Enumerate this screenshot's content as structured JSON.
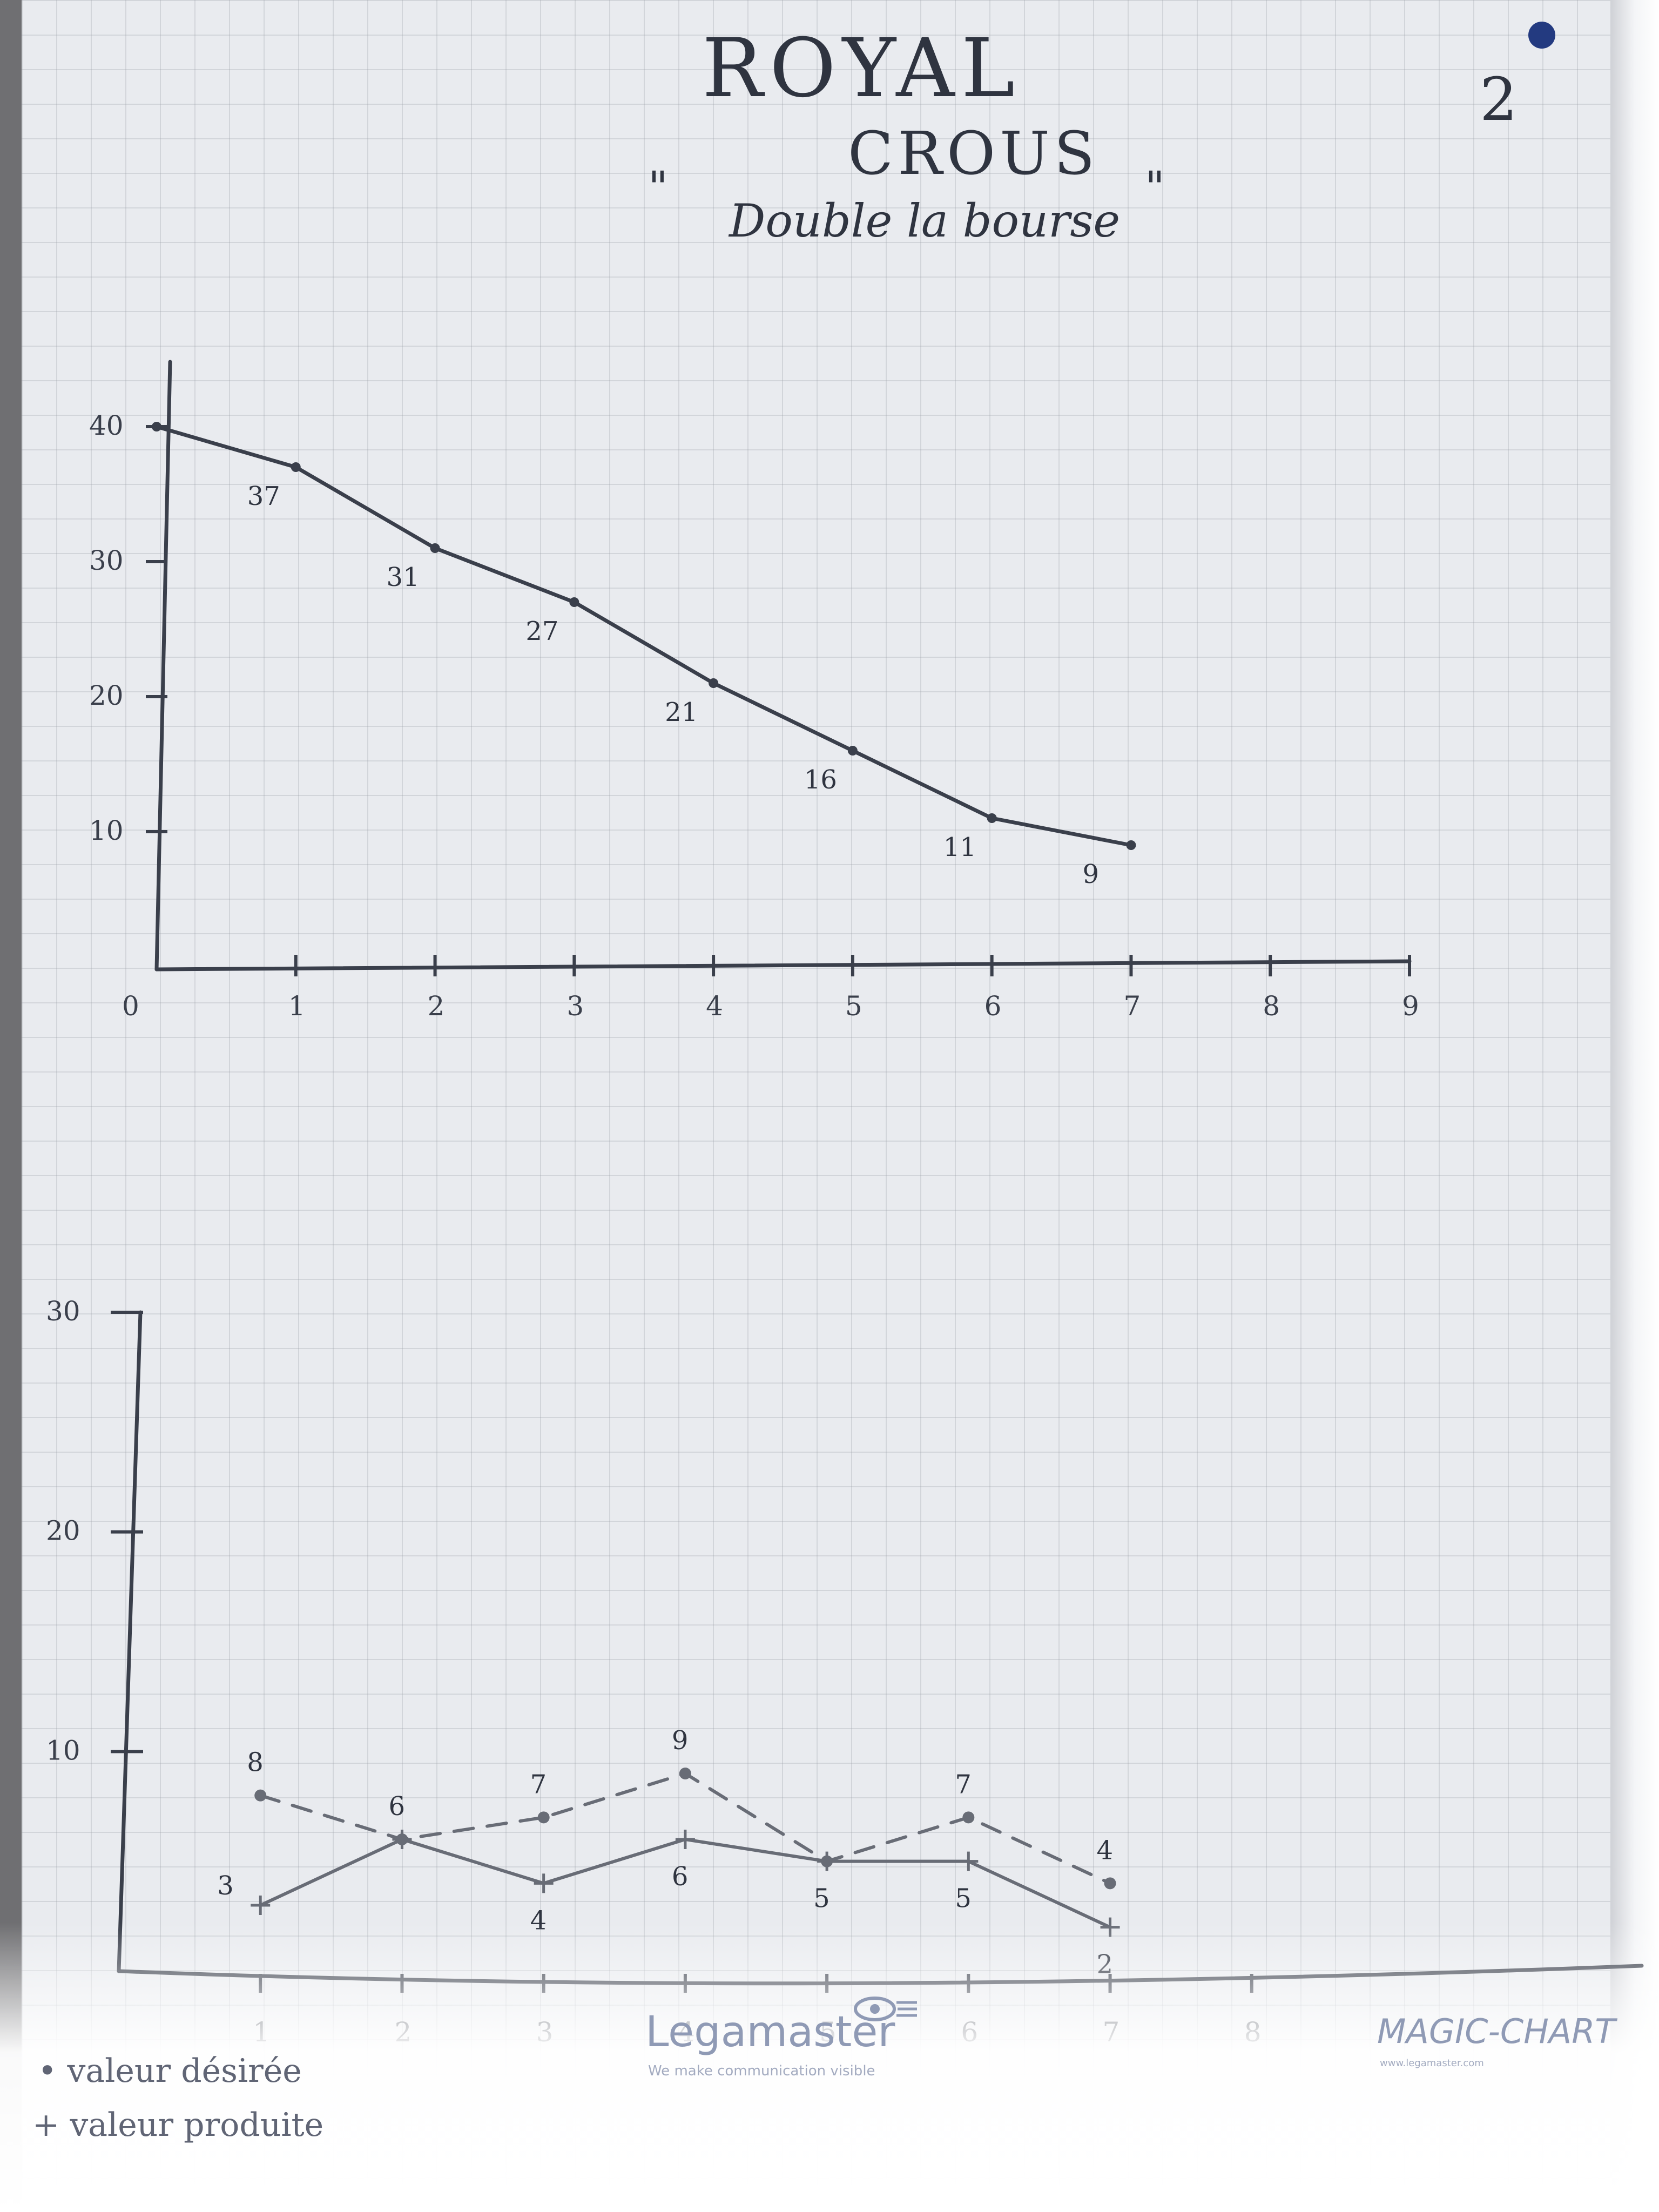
{
  "header": {
    "title": "ROYAL",
    "subtitle": "CROUS",
    "motto": "Double la bourse",
    "open_quote": "\"",
    "close_quote": "\"",
    "page_number": "2"
  },
  "legend": {
    "desired": "• valeur désirée",
    "produced": "+ valeur produite"
  },
  "branding": {
    "logo_text": "Legamaster",
    "logo_tagline": "We make communication visible",
    "product": "MAGIC-CHART",
    "url": "www.legamaster.com"
  },
  "colors": {
    "ink": "#3a3f4b",
    "ink_light": "#686c76",
    "paper": "#e9ebef",
    "brand": "#8f9ab5"
  },
  "chart_data": [
    {
      "type": "line",
      "title": "",
      "xlabel": "",
      "ylabel": "",
      "x": [
        0,
        1,
        2,
        3,
        4,
        5,
        6,
        7
      ],
      "x_ticks": [
        "0",
        "1",
        "2",
        "3",
        "4",
        "5",
        "6",
        "7",
        "8",
        "9"
      ],
      "y_ticks": [
        "10",
        "20",
        "30",
        "40"
      ],
      "xlim": [
        0,
        9
      ],
      "ylim": [
        0,
        40
      ],
      "series": [
        {
          "values": [
            40,
            37,
            31,
            27,
            21,
            16,
            11,
            9
          ],
          "labels": [
            "",
            "37",
            "31",
            "27",
            "21",
            "16",
            "11",
            "9"
          ]
        }
      ],
      "grid": true
    },
    {
      "type": "line",
      "title": "",
      "xlabel": "",
      "ylabel": "",
      "x": [
        1,
        2,
        3,
        4,
        5,
        6,
        7
      ],
      "x_ticks": [
        "1",
        "2",
        "3",
        "4",
        "5",
        "6",
        "7",
        "8"
      ],
      "y_ticks": [
        "10",
        "20",
        "30"
      ],
      "xlim": [
        0,
        9
      ],
      "ylim": [
        0,
        30
      ],
      "series": [
        {
          "name": "valeur désirée",
          "style": "dashed",
          "marker": "dot",
          "values": [
            8,
            6,
            7,
            9,
            5,
            7,
            4
          ],
          "labels": [
            "8",
            "6",
            "7",
            "9",
            "",
            "7",
            "4"
          ]
        },
        {
          "name": "valeur produite",
          "style": "solid",
          "marker": "plus",
          "values": [
            3,
            6,
            4,
            6,
            5,
            5,
            2
          ],
          "labels": [
            "3",
            "",
            "4",
            "6",
            "5",
            "5",
            "2"
          ]
        }
      ],
      "grid": true
    }
  ]
}
